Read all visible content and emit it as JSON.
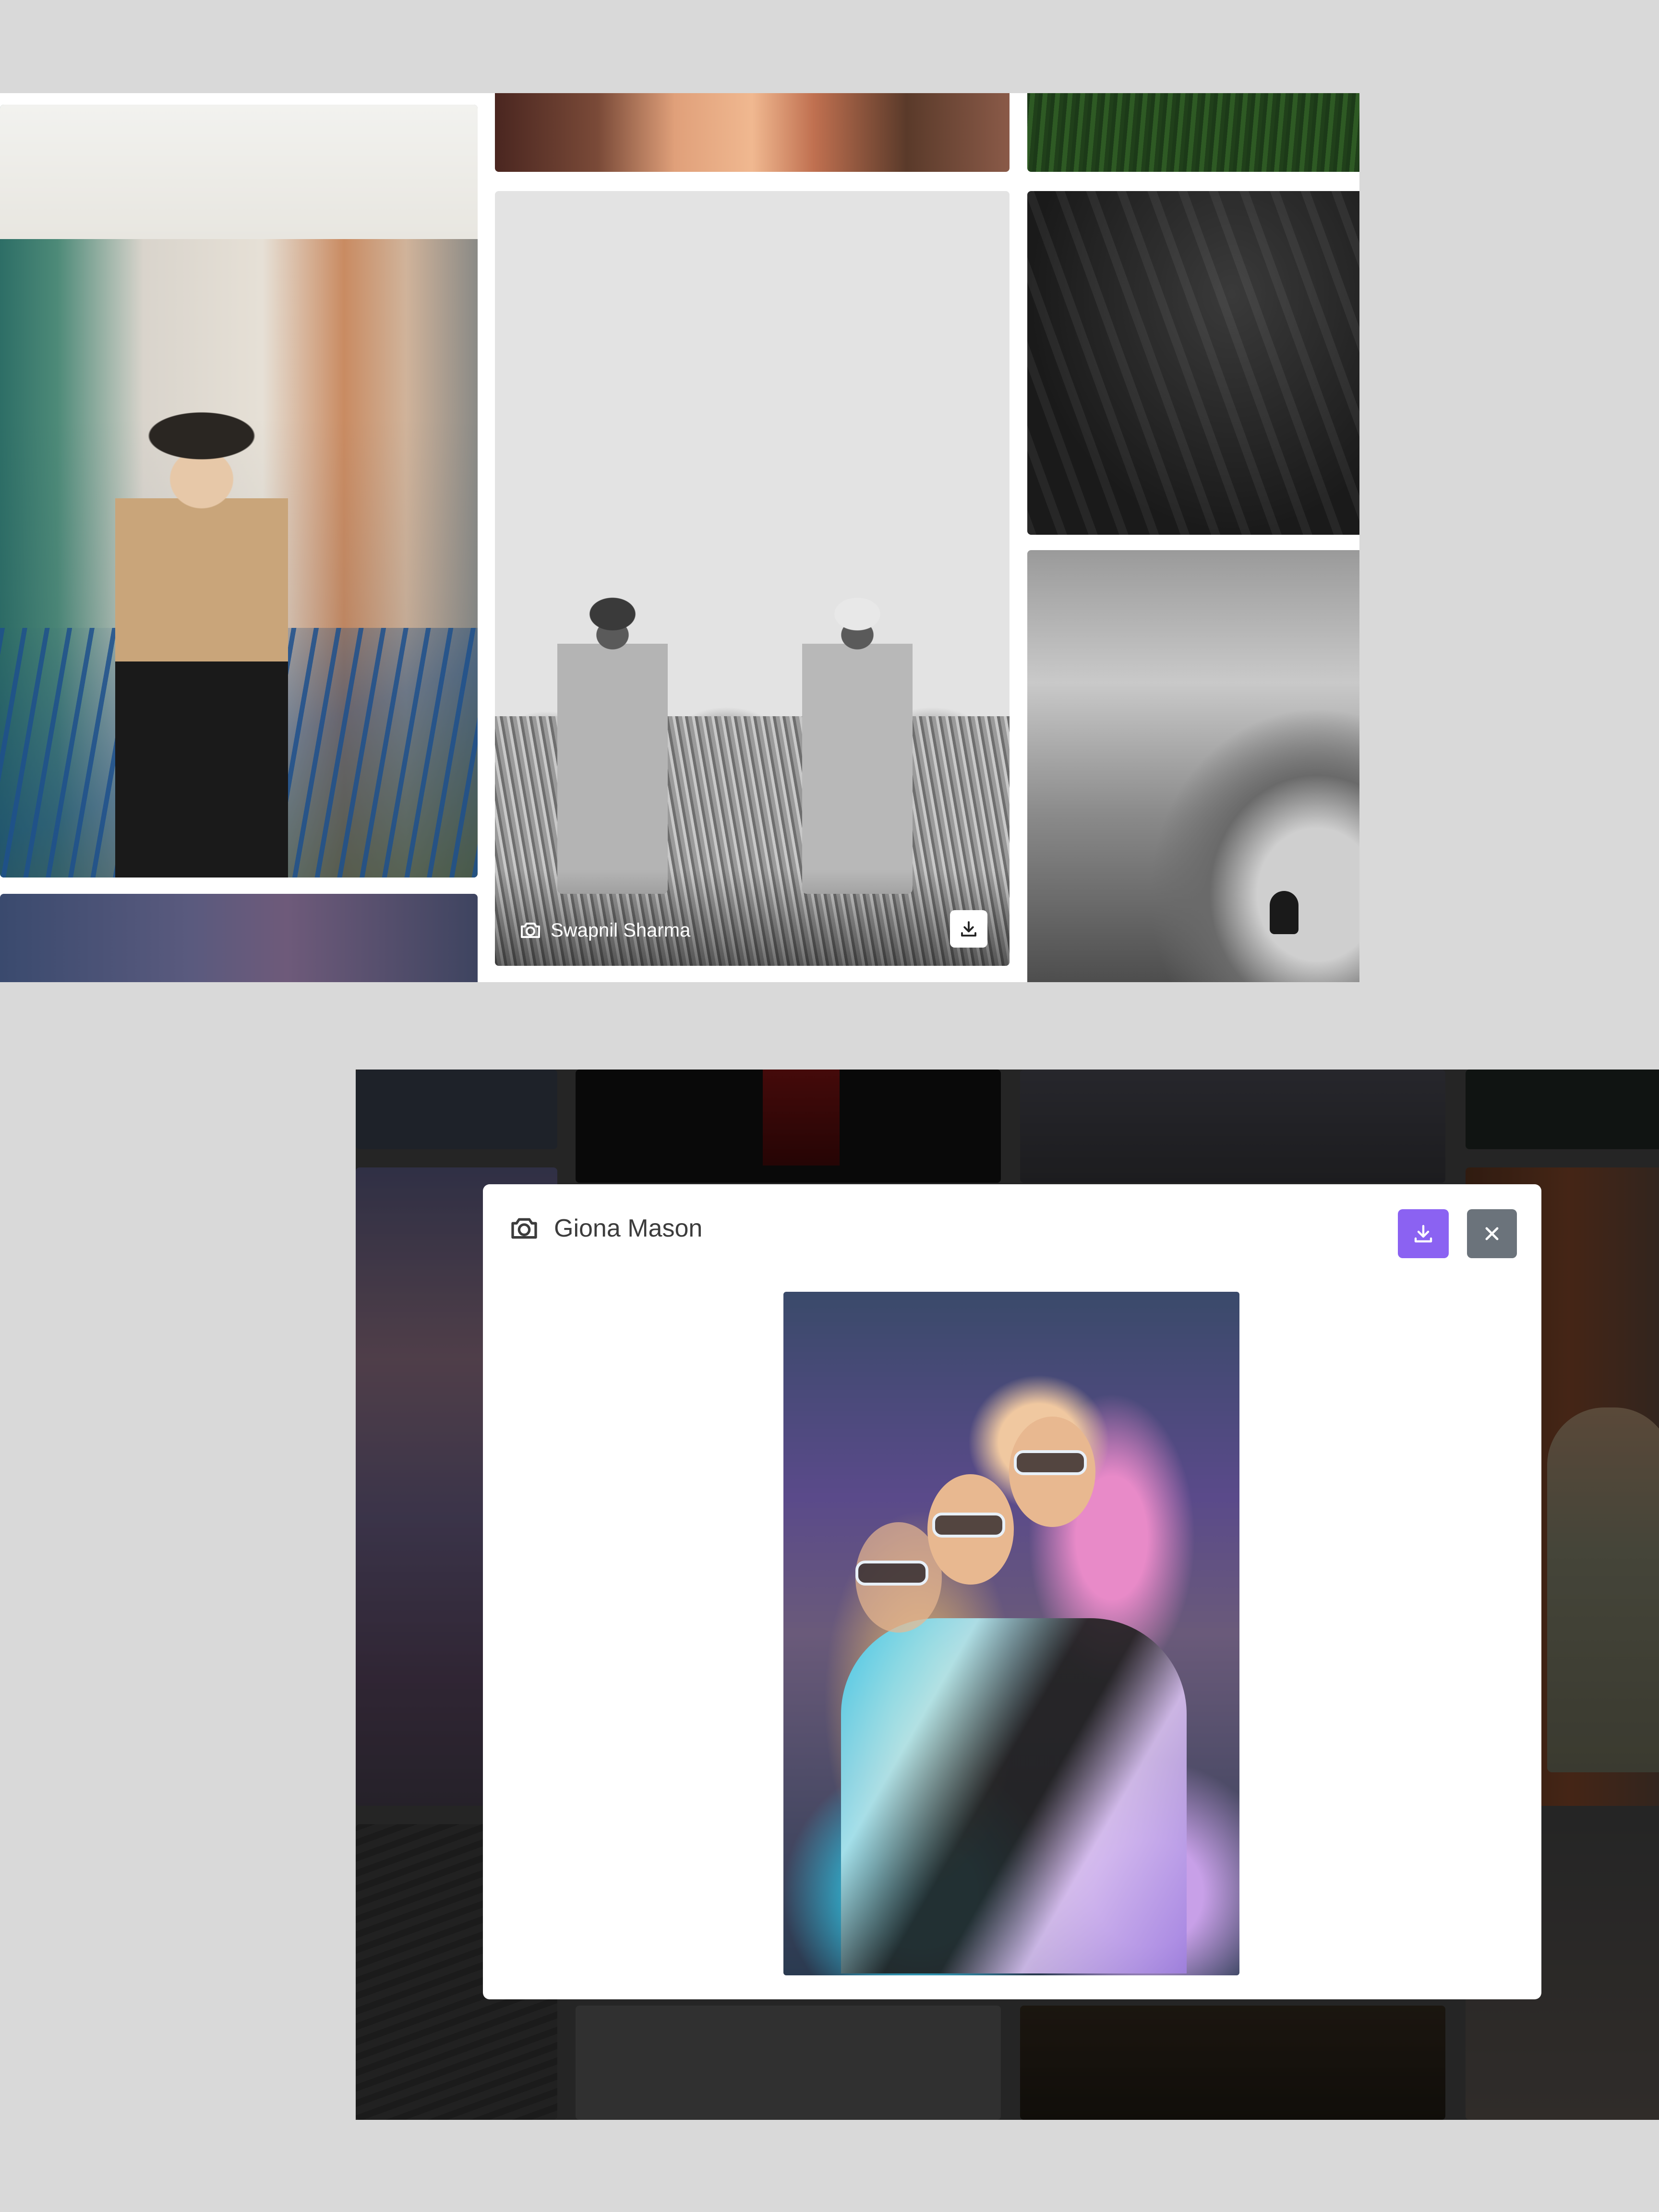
{
  "gallery_top": {
    "featured_card": {
      "photographer": "Swapnil Sharma",
      "credit_icon": "camera-icon",
      "download_icon": "download-icon"
    }
  },
  "modal": {
    "title": "Giona Mason",
    "title_icon": "camera-icon",
    "download_button_icon": "download-icon",
    "close_button_icon": "close-icon",
    "colors": {
      "download_button": "#8b62f2",
      "close_button": "#6b737b",
      "overlay": "rgba(0,0,0,0.35)"
    }
  }
}
